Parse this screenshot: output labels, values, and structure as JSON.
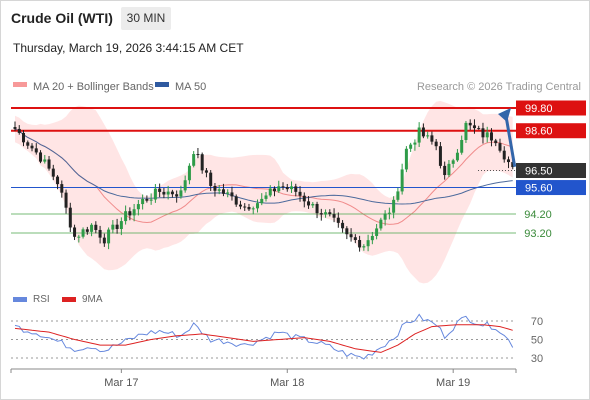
{
  "header": {
    "instrument": "Crude Oil (WTI)",
    "timeframe": "30 MIN",
    "datetime": "Thursday, March 19, 2026 3:44:15 AM CET"
  },
  "legend": {
    "ma20_label": "MA 20 + Bollinger Bands",
    "ma50_label": "MA 50",
    "credit": "Research © 2026 Trading Central",
    "rsi_label": "RSI",
    "rsi_ma_label": "9MA"
  },
  "colors": {
    "resistance": "#dd1111",
    "current_price": "#333333",
    "support_pivot": "#2255cc",
    "support": "#55aa55",
    "candle_up": "#2e9b48",
    "candle_down": "#222222",
    "bollinger": "#ffdcdc",
    "ma20": "#f08b8b",
    "ma50": "#4c6a9c",
    "rsi": "#6688dd",
    "rsi_ma": "#dd2222",
    "arrow": "#3366aa"
  },
  "chart_data": [
    {
      "type": "candlestick",
      "x_labels": [
        "Mar 17",
        "Mar 18",
        "Mar 19"
      ],
      "price_levels": [
        {
          "value": 99.8,
          "label": "99.80",
          "kind": "resistance"
        },
        {
          "value": 98.6,
          "label": "98.60",
          "kind": "resistance"
        },
        {
          "value": 96.5,
          "label": "96.50",
          "kind": "current"
        },
        {
          "value": 95.6,
          "label": "95.60",
          "kind": "pivot"
        },
        {
          "value": 94.2,
          "label": "94.20",
          "kind": "support"
        },
        {
          "value": 93.2,
          "label": "93.20",
          "kind": "support"
        }
      ],
      "waypoints": [
        [
          0,
          98.7
        ],
        [
          6,
          97.2
        ],
        [
          10,
          95.9
        ],
        [
          14,
          93.0
        ],
        [
          18,
          93.6
        ],
        [
          21,
          92.9
        ],
        [
          26,
          94.1
        ],
        [
          30,
          94.9
        ],
        [
          34,
          95.4
        ],
        [
          39,
          95.3
        ],
        [
          42,
          97.6
        ],
        [
          46,
          95.7
        ],
        [
          50,
          95.2
        ],
        [
          54,
          94.6
        ],
        [
          58,
          94.9
        ],
        [
          62,
          95.7
        ],
        [
          66,
          95.4
        ],
        [
          70,
          94.6
        ],
        [
          74,
          94.0
        ],
        [
          78,
          93.0
        ],
        [
          82,
          92.6
        ],
        [
          86,
          93.8
        ],
        [
          89,
          94.7
        ],
        [
          92,
          97.6
        ],
        [
          95,
          98.5
        ],
        [
          99,
          97.8
        ],
        [
          101,
          96.1
        ],
        [
          104,
          97.7
        ],
        [
          106,
          98.9
        ],
        [
          110,
          98.4
        ],
        [
          113,
          98.2
        ],
        [
          117,
          96.5
        ]
      ],
      "candle_count": 118,
      "arrow": {
        "from": 96.7,
        "to": 99.8,
        "direction": "up"
      }
    },
    {
      "type": "line",
      "name": "RSI",
      "ylim": [
        20,
        80
      ],
      "y_ticks": [
        70,
        50,
        30
      ],
      "series": [
        {
          "name": "RSI",
          "points": [
            [
              0,
              64
            ],
            [
              6,
              56
            ],
            [
              10,
              48
            ],
            [
              14,
              40
            ],
            [
              18,
              43
            ],
            [
              21,
              38
            ],
            [
              26,
              48
            ],
            [
              30,
              56
            ],
            [
              34,
              59
            ],
            [
              39,
              54
            ],
            [
              42,
              66
            ],
            [
              46,
              50
            ],
            [
              50,
              48
            ],
            [
              54,
              44
            ],
            [
              58,
              50
            ],
            [
              62,
              58
            ],
            [
              66,
              52
            ],
            [
              70,
              48
            ],
            [
              74,
              42
            ],
            [
              78,
              34
            ],
            [
              82,
              30
            ],
            [
              86,
              42
            ],
            [
              89,
              52
            ],
            [
              92,
              68
            ],
            [
              95,
              74
            ],
            [
              99,
              66
            ],
            [
              101,
              54
            ],
            [
              104,
              68
            ],
            [
              106,
              74
            ],
            [
              110,
              66
            ],
            [
              113,
              64
            ],
            [
              117,
              44
            ]
          ]
        },
        {
          "name": "9MA",
          "points": [
            [
              0,
              62
            ],
            [
              8,
              58
            ],
            [
              14,
              50
            ],
            [
              20,
              44
            ],
            [
              26,
              44
            ],
            [
              32,
              50
            ],
            [
              38,
              54
            ],
            [
              44,
              56
            ],
            [
              50,
              52
            ],
            [
              56,
              48
            ],
            [
              62,
              50
            ],
            [
              68,
              52
            ],
            [
              74,
              48
            ],
            [
              80,
              40
            ],
            [
              86,
              36
            ],
            [
              90,
              44
            ],
            [
              94,
              56
            ],
            [
              98,
              64
            ],
            [
              104,
              66
            ],
            [
              110,
              66
            ],
            [
              114,
              64
            ],
            [
              117,
              60
            ]
          ]
        }
      ]
    }
  ]
}
